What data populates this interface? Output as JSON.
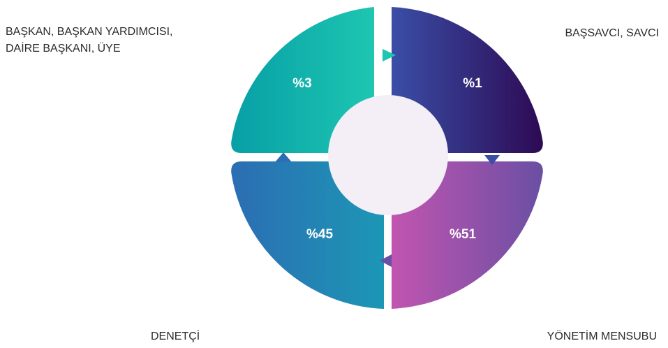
{
  "chart_data": {
    "type": "pie",
    "categories": [
      "BAŞKAN, BAŞKAN YARDIMCISI, DAİRE BAŞKANI, ÜYE",
      "BAŞSAVCI, SAVCI",
      "YÖNETİM MENSUBU",
      "DENETÇİ"
    ],
    "values": [
      3,
      1,
      51,
      45
    ],
    "value_labels": [
      "%3",
      "%1",
      "%51",
      "%45"
    ],
    "label_lines": {
      "top_left": [
        "BAŞKAN, BAŞKAN YARDIMCISI,",
        "DAİRE BAŞKANI, ÜYE"
      ],
      "top_right": [
        "BAŞSAVCI, SAVCI"
      ],
      "bottom_right": [
        "YÖNETİM MENSUBU"
      ],
      "bottom_left": [
        "DENETÇİ"
      ]
    },
    "colors": {
      "top_left": [
        "#079fa6",
        "#1ec6b1"
      ],
      "top_right": [
        "#3a4ea6",
        "#2d0a54"
      ],
      "bottom_right": [
        "#c155b0",
        "#6a4fa3"
      ],
      "bottom_left": [
        "#2c6db3",
        "#1c97b5"
      ],
      "center": "#f4eff6"
    },
    "title": "",
    "legend": "none"
  }
}
